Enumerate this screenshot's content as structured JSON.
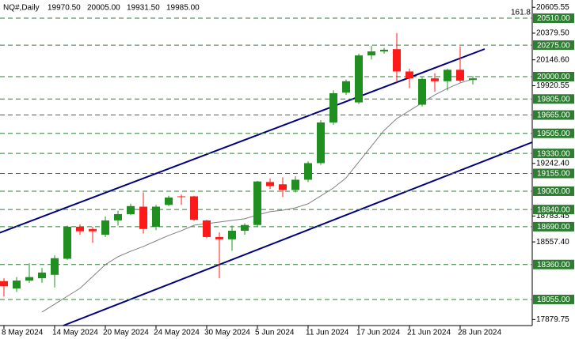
{
  "chart_data": {
    "type": "candlestick",
    "title": "NQ#,Daily",
    "title_values": [
      "19970.50",
      "20005.00",
      "19931.50",
      "19985.00"
    ],
    "annotation": "161.8",
    "categories": [
      "8 May 2024",
      null,
      null,
      null,
      "14 May 2024",
      null,
      null,
      null,
      "20 May 2024",
      null,
      null,
      null,
      "24 May 2024",
      null,
      null,
      null,
      "30 May 2024",
      null,
      null,
      null,
      "5 Jun 2024",
      null,
      null,
      null,
      "11 Jun 2024",
      null,
      null,
      null,
      "17 Jun 2024",
      null,
      null,
      null,
      "21 Jun 2024",
      null,
      null,
      null,
      "28 Jun 2024",
      null
    ],
    "open": [
      18215,
      18150,
      18220,
      18240,
      18270,
      18410,
      18690,
      18670,
      18620,
      18745,
      18800,
      18865,
      18690,
      18880,
      18955,
      18955,
      18745,
      18600,
      18580,
      18655,
      18705,
      19080,
      19060,
      19010,
      19100,
      19245,
      19600,
      19860,
      19775,
      20185,
      20220,
      20240,
      20045,
      19755,
      19985,
      19960,
      20060,
      19970.5
    ],
    "high": [
      18240,
      18250,
      18370,
      18330,
      18440,
      18700,
      18710,
      18690,
      18780,
      18830,
      18890,
      18990,
      18880,
      18960,
      18970,
      18960,
      18750,
      18640,
      18700,
      18720,
      19090,
      19110,
      19120,
      19130,
      19260,
      19620,
      19880,
      19975,
      20200,
      20270,
      20250,
      20380,
      20070,
      19995,
      20030,
      20070,
      20265,
      20005
    ],
    "low": [
      18080,
      18120,
      18200,
      18200,
      18160,
      18400,
      18620,
      18550,
      18600,
      18700,
      18790,
      18630,
      18660,
      18870,
      18880,
      18740,
      18590,
      18240,
      18480,
      18620,
      18690,
      19020,
      18950,
      18990,
      19080,
      19230,
      19580,
      19840,
      19760,
      20150,
      20200,
      19950,
      19900,
      19740,
      19870,
      19880,
      19950,
      19931.5
    ],
    "close": [
      18170,
      18220,
      18250,
      18290,
      18415,
      18690,
      18650,
      18650,
      18745,
      18800,
      18870,
      18670,
      18865,
      18945,
      18950,
      18750,
      18600,
      18580,
      18655,
      18705,
      19085,
      19045,
      19010,
      19100,
      19245,
      19600,
      19855,
      19960,
      20185,
      20220,
      20235,
      20045,
      19985,
      19980,
      19960,
      20060,
      19965,
      19985
    ],
    "ma": [
      null,
      null,
      null,
      17945,
      18014,
      18083,
      18152,
      18255,
      18359,
      18428,
      18476,
      18517,
      18566,
      18614,
      18655,
      18703,
      18717,
      18731,
      18745,
      18759,
      18793,
      18821,
      18834,
      18855,
      18890,
      18959,
      19028,
      19117,
      19255,
      19393,
      19531,
      19634,
      19703,
      19772,
      19841,
      19897,
      19945,
      19979
    ],
    "up_color": "#1f8f1f",
    "down_color": "#ff1a1a",
    "ma_color": "#808080",
    "level_color": "#2e7d32",
    "trend_color": "#000080",
    "ylim": [
      17827,
      20669
    ],
    "yticks": [
      20605.55,
      {
        "value": 20379.5,
        "label": "20379.50"
      },
      {
        "value": 20146.6,
        "label": "20146.60"
      },
      19920.55,
      {
        "value": 19242.4,
        "label": "19242.40"
      },
      18783.45,
      {
        "value": 18557.4,
        "label": "18557.40"
      },
      17879.75
    ],
    "levels": [
      {
        "value": 20510,
        "label": "20510.00"
      },
      {
        "value": 20275,
        "label": "20275.00"
      },
      {
        "value": 20000,
        "label": "20000.00"
      },
      {
        "value": 19805,
        "label": "19805.00"
      },
      {
        "value": 19665,
        "label": "19665.00"
      },
      {
        "value": 19505,
        "label": "19505.00"
      },
      {
        "value": 19330,
        "label": "19330.00"
      },
      {
        "value": 19155,
        "label": "19155.00"
      },
      {
        "value": 19000,
        "label": "19000.00"
      },
      {
        "value": 18840,
        "label": "18840.00"
      },
      {
        "value": 18690,
        "label": "18690.00"
      },
      {
        "value": 18360,
        "label": "18360.00"
      },
      {
        "value": 18055,
        "label": "18055.00"
      }
    ]
  }
}
